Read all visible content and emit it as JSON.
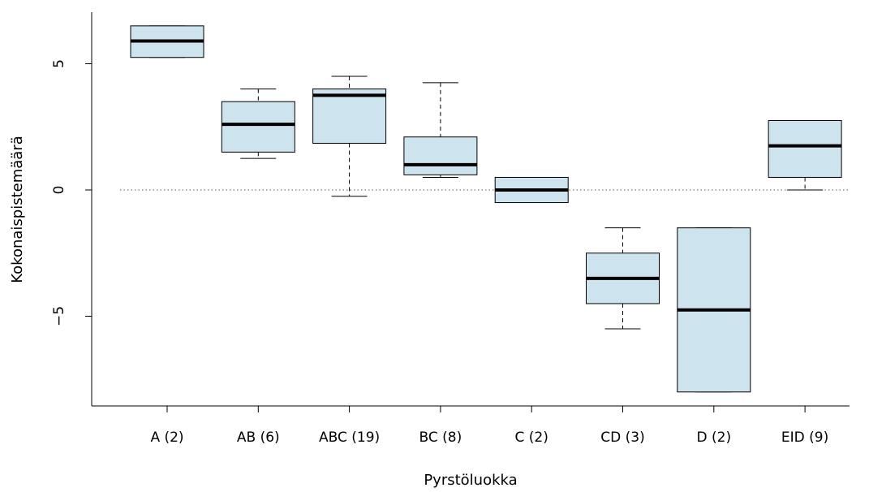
{
  "chart_data": {
    "type": "boxplot",
    "xlabel": "Pyrstöluokka",
    "ylabel": "Kokonaispistemäärä",
    "ylim": [
      -8.5,
      7.2
    ],
    "y_ticks": [
      -5,
      0,
      5
    ],
    "y_tick_labels": [
      "−5",
      "0",
      "5"
    ],
    "reference_line": {
      "y": 0,
      "style": "dotted"
    },
    "box_fill": "#cde3ee",
    "categories": [
      "A (2)",
      "AB (6)",
      "ABC (19)",
      "BC (8)",
      "C (2)",
      "CD (3)",
      "D (2)",
      "EID (9)"
    ],
    "boxes": [
      {
        "whisker_low": 5.25,
        "q1": 5.25,
        "median": 5.9,
        "q3": 6.5,
        "whisker_high": 6.5
      },
      {
        "whisker_low": 1.25,
        "q1": 1.5,
        "median": 2.6,
        "q3": 3.5,
        "whisker_high": 4.0
      },
      {
        "whisker_low": -0.25,
        "q1": 1.85,
        "median": 3.75,
        "q3": 4.0,
        "whisker_high": 4.5
      },
      {
        "whisker_low": 0.5,
        "q1": 0.6,
        "median": 1.0,
        "q3": 2.1,
        "whisker_high": 4.25
      },
      {
        "whisker_low": -0.5,
        "q1": -0.5,
        "median": 0.0,
        "q3": 0.5,
        "whisker_high": 0.5
      },
      {
        "whisker_low": -5.5,
        "q1": -4.5,
        "median": -3.5,
        "q3": -2.5,
        "whisker_high": -1.5
      },
      {
        "whisker_low": -8.0,
        "q1": -8.0,
        "median": -4.75,
        "q3": -1.5,
        "whisker_high": -1.5
      },
      {
        "whisker_low": 0.0,
        "q1": 0.5,
        "median": 1.75,
        "q3": 2.75,
        "whisker_high": 2.75
      }
    ]
  }
}
